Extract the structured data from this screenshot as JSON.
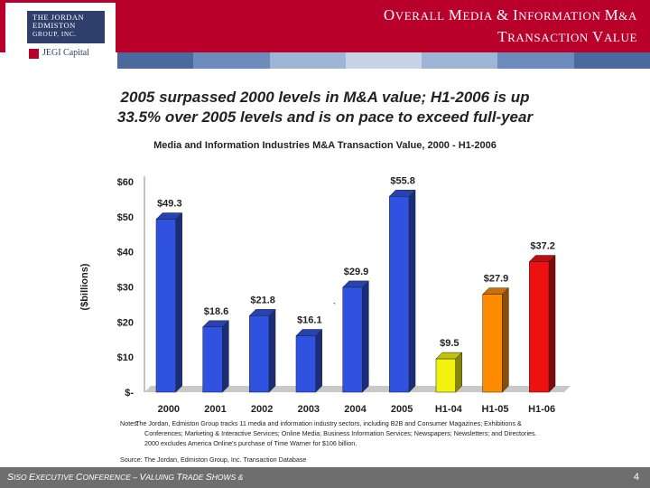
{
  "header": {
    "title_line1": "Overall Media & Information M&A",
    "title_line2": "Transaction Value"
  },
  "logo": {
    "line1": "THE JORDAN",
    "line2": "EDMISTON",
    "line3": "GROUP, INC.",
    "jegi_text": "JEGI Capital"
  },
  "colors": {
    "header_red": "#b8002a",
    "band": [
      "#4a6a9e",
      "#6e8cbb",
      "#9fb5d6",
      "#c8d4e6",
      "#9fb5d6",
      "#6e8cbb",
      "#4a6a9e"
    ]
  },
  "headline": {
    "line1": "2005 surpassed 2000 levels in M&A value; H1-2006 is up",
    "line2": "33.5% over 2005 levels and is on pace to exceed full-year"
  },
  "chart_data": {
    "type": "bar",
    "title": "Media and Information Industries M&A Transaction Value, 2000 - H1-2006",
    "xlabel": "",
    "ylabel": "($billions)",
    "ylim": [
      0,
      60
    ],
    "yticks": [
      0,
      10,
      20,
      30,
      40,
      50,
      60
    ],
    "ytick_labels": [
      "$-",
      "$10",
      "$20",
      "$30",
      "$40",
      "$50",
      "$60"
    ],
    "categories": [
      "2000",
      "2001",
      "2002",
      "2003",
      "2004",
      "2005",
      "H1-04",
      "H1-05",
      "H1-06"
    ],
    "values": [
      49.3,
      18.6,
      21.8,
      16.1,
      29.9,
      55.8,
      9.5,
      27.9,
      37.2
    ],
    "value_labels": [
      "$49.3",
      "$18.6",
      "$21.8",
      "$16.1",
      "$29.9",
      "$55.8",
      "$9.5",
      "$27.9",
      "$37.2"
    ],
    "bar_colors": [
      "#2f52e0",
      "#2f52e0",
      "#2f52e0",
      "#2f52e0",
      "#2f52e0",
      "#2f52e0",
      "#f2f20e",
      "#ff8c00",
      "#ee1111"
    ],
    "stray_mark": "`",
    "grid": false,
    "legend": "none"
  },
  "notes": {
    "label": "Notes:",
    "line1": "The Jordan, Edmiston Group tracks 11 media and information industry sectors, including B2B and Consumer Magazines; Exhibitions &",
    "line2": "Conferences; Marketing & Interactive Services; Online Media; Business Information Services; Newspapers; Newsletters; and Directories.",
    "line3": "2000 excludes America Online's purchase of Time Warner for $106 billion."
  },
  "source": "Source: The Jordan, Edmiston Group, Inc. Transaction Database",
  "footer": {
    "s1": "S",
    "t1": "ISO ",
    "s2": "E",
    "t2": "XECUTIVE ",
    "s3": "C",
    "t3": "ONFERENCE – ",
    "s4": "V",
    "t4": "ALUING ",
    "s5": "T",
    "t5": "RADE ",
    "s6": "S",
    "t6": "HOWS &",
    "page": "4"
  }
}
